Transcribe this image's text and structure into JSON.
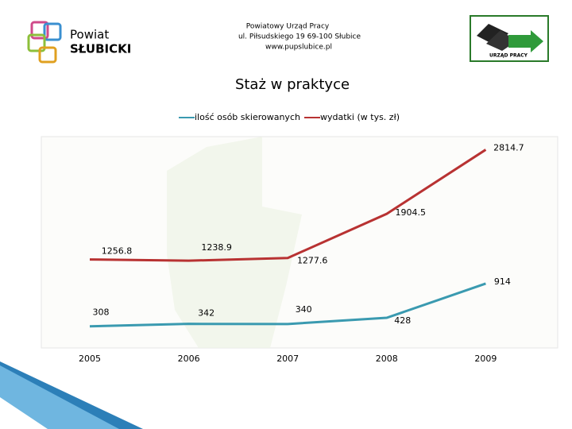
{
  "header": {
    "logo_line1": "Powiat",
    "logo_line2": "SŁUBICKI",
    "office_line1": "Powiatowy Urząd Pracy",
    "office_line2": "ul. Piłsudskiego 19 69-100 Słubice",
    "office_line3": "www.pupslubice.pl",
    "right_logo": "URZĄD PRACY"
  },
  "chart_data": {
    "type": "line",
    "title": "Staż w praktyce",
    "categories": [
      "2005",
      "2006",
      "2007",
      "2008",
      "2009"
    ],
    "series": [
      {
        "name": "ilość osób skierowanych",
        "color": "#3a9ab0",
        "values": [
          308,
          342,
          340,
          428,
          914
        ]
      },
      {
        "name": "wydatki (w tys. zł)",
        "color": "#b83232",
        "values": [
          1256.8,
          1238.9,
          1277.6,
          1904.5,
          2814.7
        ]
      }
    ],
    "ylim": [
      0,
      3000
    ]
  }
}
